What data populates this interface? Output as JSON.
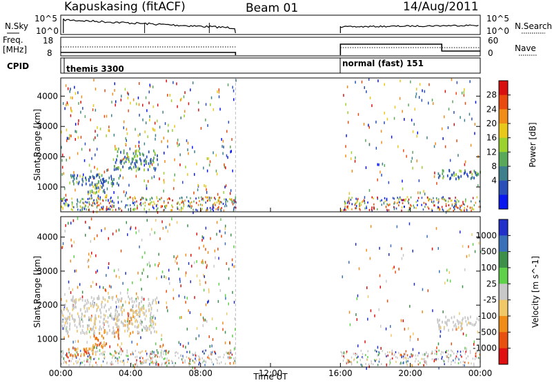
{
  "header": {
    "station": "Kapuskasing (fitACF)",
    "beam": "Beam 01",
    "date": "14/Aug/2011"
  },
  "top_panels": {
    "nsky_label": "N.Sky",
    "nsearch_label": "N.Search",
    "freq_label_1": "Freq.",
    "freq_label_2": "[MHz]",
    "nave_label": "Nave",
    "cpid_label": "CPID",
    "nsky_ticks": [
      "10^5",
      "10^0"
    ],
    "nsearch_ticks": [
      "10^5",
      "10^0"
    ],
    "freq_ticks": [
      "18",
      "8"
    ],
    "nave_ticks": [
      "60",
      "0"
    ],
    "cpid_1": "themis 3300",
    "cpid_2": "normal (fast) 151"
  },
  "chart_data": [
    {
      "type": "heatmap",
      "name": "power",
      "ylabel": "Slant Range [km]",
      "colorbar_label": "Power [dB]",
      "colorbar_ticks": [
        "28",
        "24",
        "20",
        "16",
        "12",
        "8",
        "4"
      ],
      "colors": [
        "#0a18f0",
        "#2a4fb8",
        "#3d7f8a",
        "#5aa85a",
        "#9bd22e",
        "#e8c81a",
        "#f08c18",
        "#e84a10",
        "#d81010"
      ],
      "y_ticks": [
        1000,
        2000,
        3000,
        4000
      ],
      "ylim": [
        180,
        4600
      ],
      "xlim": [
        0,
        24
      ],
      "data_gap": [
        10,
        16
      ],
      "features": [
        {
          "t": [
            0.5,
            3.5
          ],
          "r": [
            1100,
            1450
          ],
          "level": 8
        },
        {
          "t": [
            1.5,
            2.6
          ],
          "r": [
            700,
            1100
          ],
          "level": 14
        },
        {
          "t": [
            3.0,
            5.5
          ],
          "r": [
            1600,
            2250
          ],
          "level": 10
        },
        {
          "t": [
            21.5,
            24
          ],
          "r": [
            1300,
            1600
          ],
          "level": 10
        }
      ]
    },
    {
      "type": "heatmap",
      "name": "velocity",
      "ylabel": "Slant Range [km]",
      "colorbar_label": "Velocity [m s^-1]",
      "colorbar_ticks": [
        "1000",
        "500",
        "100",
        "25",
        "-25",
        "-100",
        "-500",
        "-1000"
      ],
      "colors": [
        "#2030c8",
        "#3a70b8",
        "#3e8f4a",
        "#5ed04a",
        "#c8c8c8",
        "#f0c868",
        "#f08c18",
        "#e85010",
        "#e01010"
      ],
      "y_ticks": [
        1000,
        2000,
        3000,
        4000
      ],
      "ylim": [
        180,
        4600
      ],
      "xlim": [
        0,
        24
      ],
      "x_ticks": [
        "00:00",
        "04:00",
        "08:00",
        "12:00",
        "16:00",
        "20:00",
        "00:00"
      ],
      "xlabel": "Time UT",
      "data_gap": [
        10,
        16
      ],
      "features": [
        {
          "t": [
            0.3,
            2.0
          ],
          "r": [
            500,
            800
          ],
          "level": -400
        },
        {
          "t": [
            1.8,
            2.6
          ],
          "r": [
            700,
            1300
          ],
          "level": -400
        },
        {
          "t": [
            3.0,
            3.4
          ],
          "r": [
            1000,
            1500
          ],
          "level": -300
        },
        {
          "t": [
            3.8,
            4.3
          ],
          "r": [
            1200,
            1900
          ],
          "level": -400
        },
        {
          "t": [
            0.0,
            5.5
          ],
          "r": [
            1200,
            2300
          ],
          "level": 0
        },
        {
          "t": [
            21.5,
            24
          ],
          "r": [
            1300,
            1700
          ],
          "level": 0
        }
      ]
    }
  ]
}
